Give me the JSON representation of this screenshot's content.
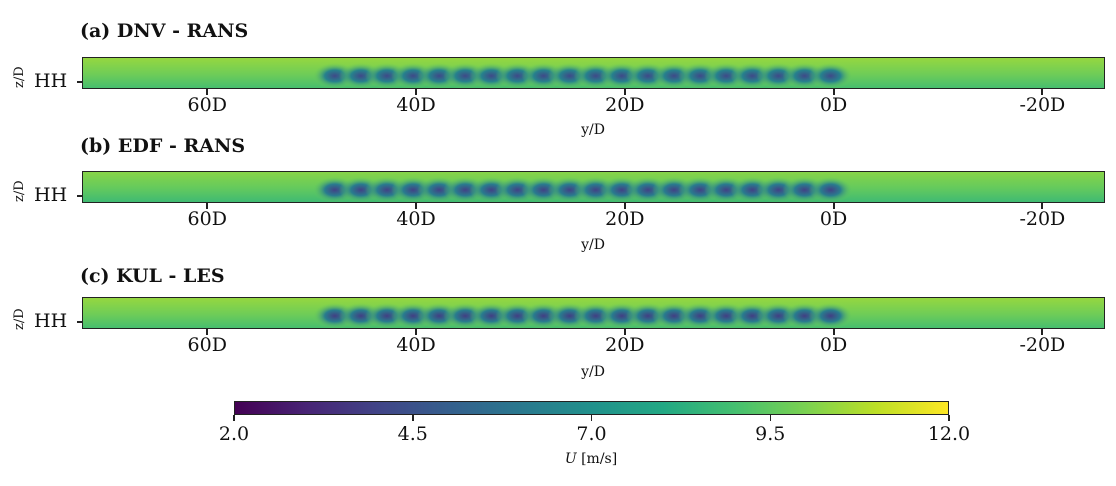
{
  "chart_data": [
    {
      "type": "heatmap",
      "title": "(a) DNV - RANS",
      "xlabel": "y/D",
      "ylabel": "z/D",
      "xticks": [
        "60D",
        "40D",
        "20D",
        "0D",
        "-20D"
      ],
      "xtick_values": [
        60,
        40,
        20,
        0,
        -20
      ],
      "yticks": [
        "HH"
      ],
      "xlim": [
        72,
        -26
      ],
      "turbine_positions": [
        47.5,
        45,
        42.5,
        40,
        37.5,
        35,
        32.5,
        30,
        27.5,
        25,
        22.5,
        20,
        17.5,
        15,
        12.5,
        10,
        7.5,
        5,
        2.5,
        0
      ],
      "freestream_U": 9.8,
      "min_wake_U": 4.2
    },
    {
      "type": "heatmap",
      "title": "(b) EDF - RANS",
      "xlabel": "y/D",
      "ylabel": "z/D",
      "xticks": [
        "60D",
        "40D",
        "20D",
        "0D",
        "-20D"
      ],
      "xtick_values": [
        60,
        40,
        20,
        0,
        -20
      ],
      "yticks": [
        "HH"
      ],
      "xlim": [
        72,
        -26
      ],
      "turbine_positions": [
        47.5,
        45,
        42.5,
        40,
        37.5,
        35,
        32.5,
        30,
        27.5,
        25,
        22.5,
        20,
        17.5,
        15,
        12.5,
        10,
        7.5,
        5,
        2.5,
        0
      ],
      "freestream_U": 9.6,
      "min_wake_U": 3.9
    },
    {
      "type": "heatmap",
      "title": "(c) KUL - LES",
      "xlabel": "y/D",
      "ylabel": "z/D",
      "xticks": [
        "60D",
        "40D",
        "20D",
        "0D",
        "-20D"
      ],
      "xtick_values": [
        60,
        40,
        20,
        0,
        -20
      ],
      "yticks": [
        "HH"
      ],
      "xlim": [
        72,
        -26
      ],
      "turbine_positions": [
        47.5,
        45,
        42.5,
        40,
        37.5,
        35,
        32.5,
        30,
        27.5,
        25,
        22.5,
        20,
        17.5,
        15,
        12.5,
        10,
        7.5,
        5,
        2.5,
        0
      ],
      "freestream_U": 9.8,
      "min_wake_U": 3.8
    }
  ],
  "colorbar": {
    "colormap": "viridis",
    "vmin": 2.0,
    "vmax": 12.0,
    "tick_values": [
      2.0,
      4.5,
      7.0,
      9.5,
      12.0
    ],
    "tick_labels": [
      "2.0",
      "4.5",
      "7.0",
      "9.5",
      "12.0"
    ],
    "label_symbol": "U",
    "label_unit": " [m/s]"
  }
}
